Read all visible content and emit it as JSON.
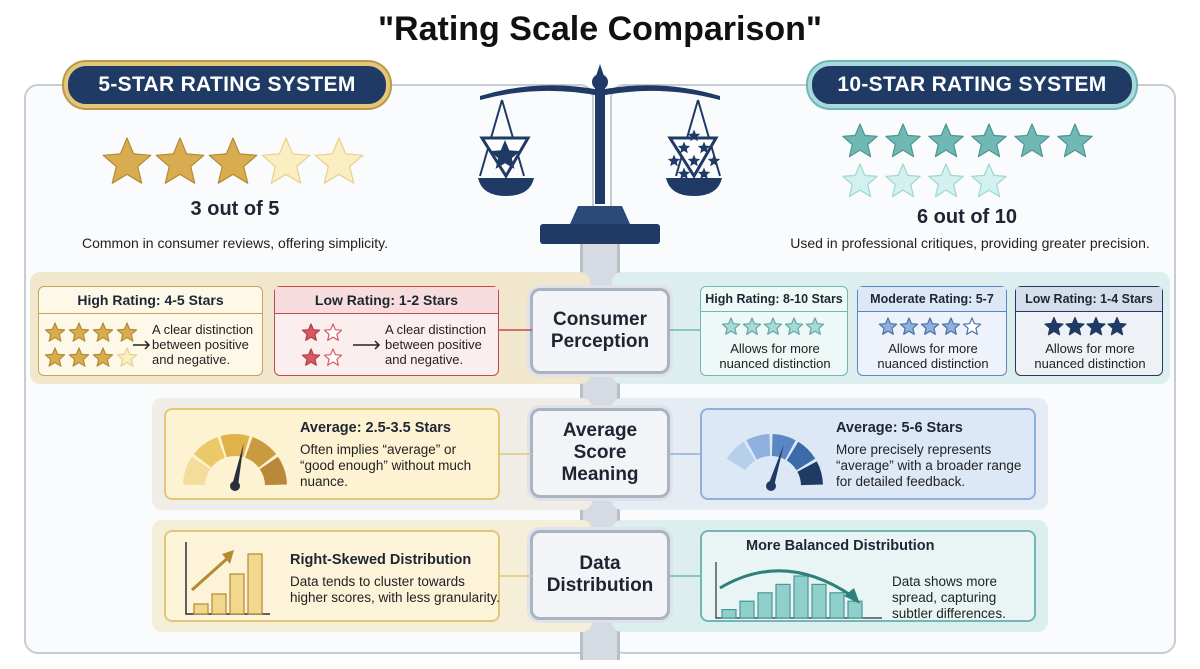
{
  "title": "\"Rating Scale Comparison\"",
  "left": {
    "header": "5-STAR RATING SYSTEM",
    "rating": {
      "filled": 3,
      "total": 5
    },
    "score_text": "3 out of 5",
    "description": "Common in consumer reviews, offering simplicity.",
    "high": {
      "label": "High Rating: 4-5 Stars",
      "text": "A clear distinction between positive and negative."
    },
    "low": {
      "label": "Low Rating: 1-2 Stars",
      "text": "A clear distinction between positive and negative."
    },
    "average": {
      "label": "Average: 2.5-3.5 Stars",
      "text": "Often implies “average” or “good enough” without much nuance."
    },
    "distribution": {
      "label": "Right-Skewed Distribution",
      "text": "Data tends to cluster towards higher scores, with less granularity.",
      "bars": [
        1,
        2,
        4,
        6
      ]
    }
  },
  "right": {
    "header": "10-STAR RATING SYSTEM",
    "rating": {
      "filled": 6,
      "total": 10
    },
    "score_text": "6 out of 10",
    "description": "Used in professional critiques, providing greater precision.",
    "high": {
      "label": "High Rating: 8-10 Stars",
      "text": "Allows for more nuanced distinction"
    },
    "moderate": {
      "label": "Moderate Rating: 5-7",
      "text": "Allows for more nuanced distinction"
    },
    "low": {
      "label": "Low Rating: 1-4 Stars",
      "text": "Allows for more nuanced distinction"
    },
    "average": {
      "label": "Average: 5-6 Stars",
      "text": "More precisely represents “average” with a broader range for detailed feedback."
    },
    "distribution": {
      "label": "More Balanced Distribution",
      "text": "Data shows more spread, capturing subtler differences.",
      "bars": [
        1,
        2,
        3,
        4,
        5,
        4,
        3,
        2
      ]
    }
  },
  "center": {
    "perception": "Consumer Perception",
    "average": "Average Score Meaning",
    "distribution": "Data Distribution"
  },
  "colors": {
    "gold": "#d9ad4f",
    "teal": "#6fb8b4",
    "navy": "#1f3a64",
    "red": "#c7474f"
  }
}
